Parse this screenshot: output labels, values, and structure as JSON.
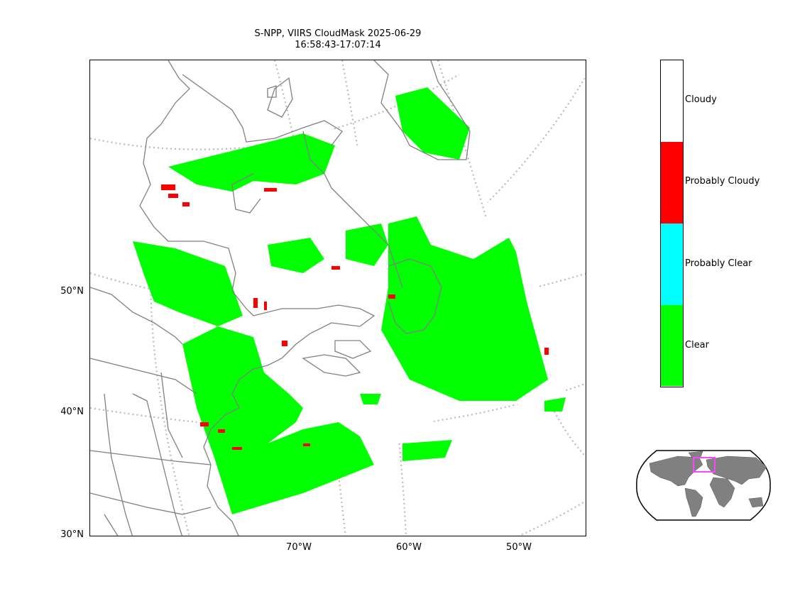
{
  "title": {
    "line1": "S-NPP, VIIRS CloudMask 2025-06-29",
    "line2": "16:58:43-17:07:14"
  },
  "lat_labels": [
    "50°N",
    "40°N",
    "30°N"
  ],
  "lon_labels": [
    "70°W",
    "60°W",
    "50°W"
  ],
  "colorbar": {
    "categories": [
      {
        "label": "Cloudy",
        "color": "#ffffff"
      },
      {
        "label": "Probably Cloudy",
        "color": "#ff0000"
      },
      {
        "label": "Probably Clear",
        "color": "#00ffff"
      },
      {
        "label": "Clear",
        "color": "#00ff00"
      }
    ]
  },
  "colors": {
    "coastline": "#808080",
    "graticule": "#bbbbbb",
    "inset_land": "#808080",
    "inset_box": "#ff44ff"
  }
}
